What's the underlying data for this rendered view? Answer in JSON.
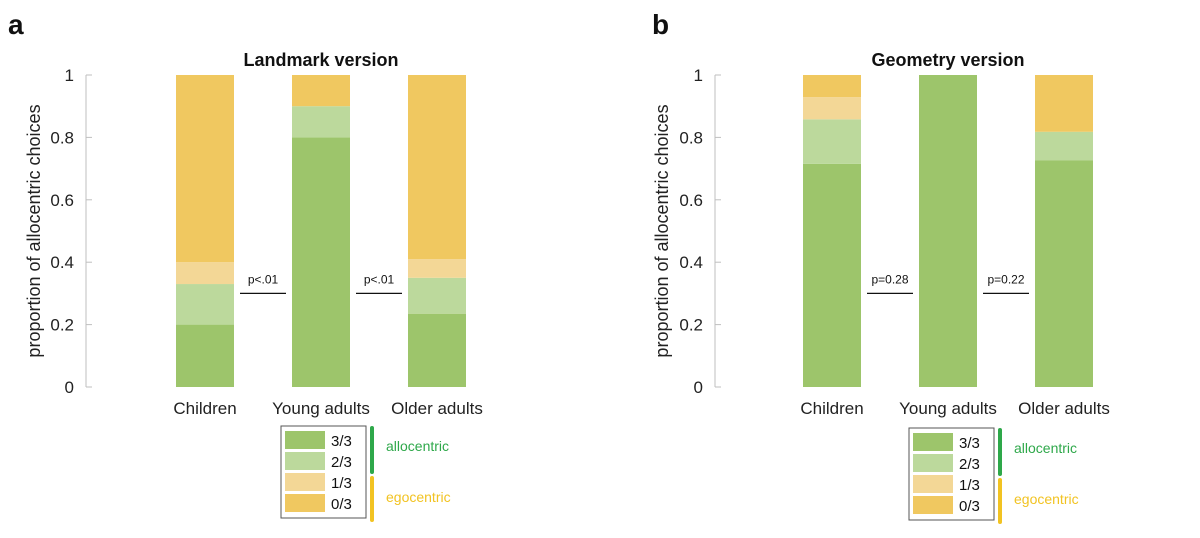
{
  "colors": {
    "s33": "#9dc56b",
    "s23": "#bcd99c",
    "s13": "#f3d796",
    "s03": "#f0c860",
    "allocentric": "#2ea84a",
    "egocentric": "#f2c322"
  },
  "legend": {
    "entries": [
      "3/3",
      "2/3",
      "1/3",
      "0/3"
    ],
    "groups": [
      "allocentric",
      "egocentric"
    ]
  },
  "chart_data": [
    {
      "panel_label": "a",
      "type": "bar",
      "stacked": true,
      "title": "Landmark version",
      "ylabel": "proportion of allocentric choices",
      "ylim": [
        0,
        1
      ],
      "yticks": [
        "0",
        "0.2",
        "0.4",
        "0.6",
        "0.8",
        "1"
      ],
      "categories": [
        "Children",
        "Young adults",
        "Older adults"
      ],
      "series": [
        {
          "name": "3/3",
          "values": [
            0.2,
            0.8,
            0.235
          ]
        },
        {
          "name": "2/3",
          "values": [
            0.13,
            0.1,
            0.115
          ]
        },
        {
          "name": "1/3",
          "values": [
            0.07,
            0.0,
            0.06
          ]
        },
        {
          "name": "0/3",
          "values": [
            0.6,
            0.1,
            0.59
          ]
        }
      ],
      "annotations": [
        {
          "text": "p<.01",
          "between": [
            0,
            1
          ],
          "y": 0.3
        },
        {
          "text": "p<.01",
          "between": [
            1,
            2
          ],
          "y": 0.3
        }
      ]
    },
    {
      "panel_label": "b",
      "type": "bar",
      "stacked": true,
      "title": "Geometry version",
      "ylabel": "proportion of allocentric choices",
      "ylim": [
        0,
        1
      ],
      "yticks": [
        "0",
        "0.2",
        "0.4",
        "0.6",
        "0.8",
        "1"
      ],
      "categories": [
        "Children",
        "Young adults",
        "Older adults"
      ],
      "series": [
        {
          "name": "3/3",
          "values": [
            0.715,
            1.0,
            0.727
          ]
        },
        {
          "name": "2/3",
          "values": [
            0.143,
            0.0,
            0.091
          ]
        },
        {
          "name": "1/3",
          "values": [
            0.071,
            0.0,
            0.0
          ]
        },
        {
          "name": "0/3",
          "values": [
            0.071,
            0.0,
            0.182
          ]
        }
      ],
      "annotations": [
        {
          "text": "p=0.28",
          "between": [
            0,
            1
          ],
          "y": 0.3
        },
        {
          "text": "p=0.22",
          "between": [
            1,
            2
          ],
          "y": 0.3
        }
      ]
    }
  ]
}
